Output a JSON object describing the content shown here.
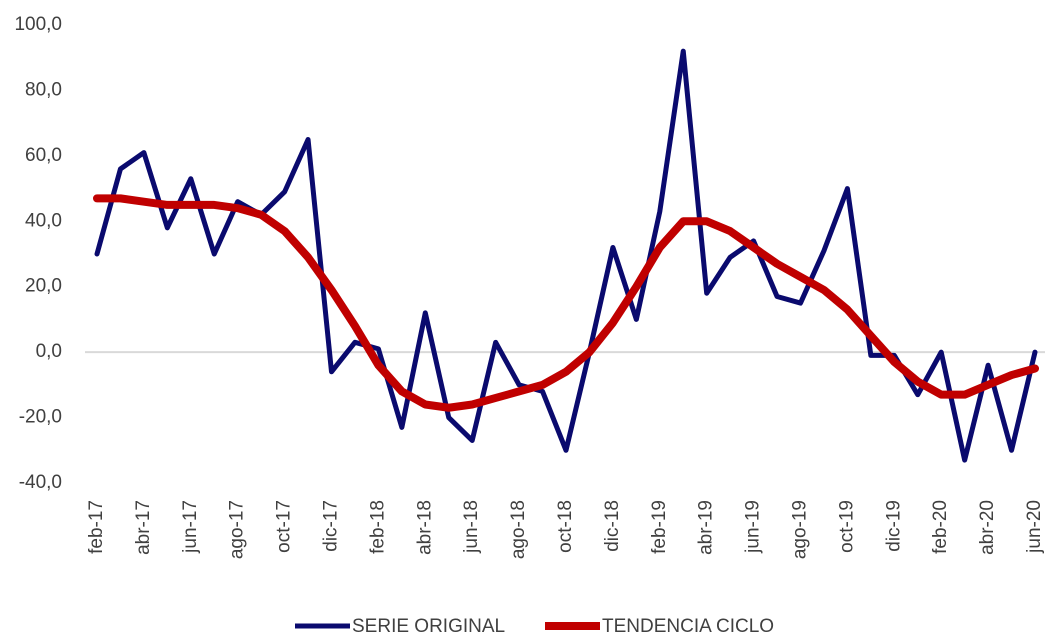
{
  "chart_data": {
    "type": "line",
    "categories": [
      "feb-17",
      null,
      "abr-17",
      null,
      "jun-17",
      null,
      "ago-17",
      null,
      "oct-17",
      null,
      "dic-17",
      null,
      "feb-18",
      null,
      "abr-18",
      null,
      "jun-18",
      null,
      "ago-18",
      null,
      "oct-18",
      null,
      "dic-18",
      null,
      "feb-19",
      null,
      "abr-19",
      null,
      "jun-19",
      null,
      "ago-19",
      null,
      "oct-19",
      null,
      "dic-19",
      null,
      "feb-20",
      null,
      "abr-20",
      null,
      "jun-20"
    ],
    "series": [
      {
        "name": "SERIE ORIGINAL",
        "color": "#0a0a6e",
        "values": [
          30,
          56,
          61,
          38,
          53,
          30,
          46,
          42,
          49,
          65,
          -6,
          3,
          1,
          -23,
          12,
          -20,
          -27,
          3,
          -10,
          -12,
          -30,
          0,
          32,
          10,
          43,
          92,
          18,
          29,
          34,
          17,
          15,
          31,
          50,
          -1,
          -1,
          -13,
          0,
          -33,
          -4,
          -30,
          0
        ]
      },
      {
        "name": "TENDENCIA CICLO",
        "color": "#c00000",
        "values": [
          47,
          47,
          46,
          45,
          45,
          45,
          44,
          42,
          37,
          29,
          19,
          8,
          -4,
          -12,
          -16,
          -17,
          -16,
          -14,
          -12,
          -10,
          -6,
          0,
          9,
          20,
          32,
          40,
          40,
          37,
          32,
          27,
          23,
          19,
          13,
          5,
          -3,
          -9,
          -13,
          -13,
          -10,
          -7,
          -5
        ]
      }
    ],
    "ylim": [
      -40,
      100
    ],
    "yticks": [
      {
        "value": -40,
        "label": "-40,0"
      },
      {
        "value": -20,
        "label": "-20,0"
      },
      {
        "value": 0,
        "label": "0,0"
      },
      {
        "value": 20,
        "label": "20,0"
      },
      {
        "value": 40,
        "label": "40,0"
      },
      {
        "value": 60,
        "label": "60,0"
      },
      {
        "value": 80,
        "label": "80,0"
      },
      {
        "value": 100,
        "label": "100,0"
      }
    ],
    "legend": "bottom"
  }
}
